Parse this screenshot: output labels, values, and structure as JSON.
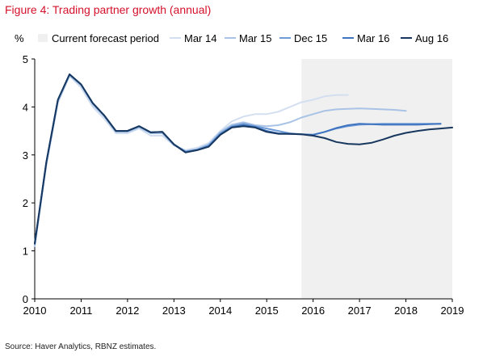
{
  "figure": {
    "title": "Figure 4: Trading partner growth (annual)",
    "source": "Source: Haver Analytics, RBNZ estimates."
  },
  "chart_data": {
    "type": "line",
    "ylabel": "%",
    "xlim": [
      2010,
      2019
    ],
    "ylim": [
      0,
      5
    ],
    "x_ticks": [
      "2010",
      "2011",
      "2012",
      "2013",
      "2014",
      "2015",
      "2016",
      "2017",
      "2018",
      "2019"
    ],
    "y_ticks": [
      "0",
      "1",
      "2",
      "3",
      "4",
      "5"
    ],
    "grid": false,
    "legend_position": "top",
    "shaded_region": {
      "label": "Current forecast period",
      "x_start": 2015.75,
      "x_end": 2019,
      "color": "#f0f0f0"
    },
    "series": [
      {
        "name": "Mar 14",
        "color": "#d3dff0",
        "points": [
          [
            2010,
            1.1
          ],
          [
            2010.25,
            2.8
          ],
          [
            2010.5,
            4.1
          ],
          [
            2010.75,
            4.65
          ],
          [
            2011,
            4.4
          ],
          [
            2011.25,
            4.0
          ],
          [
            2011.5,
            3.75
          ],
          [
            2011.75,
            3.45
          ],
          [
            2012,
            3.45
          ],
          [
            2012.25,
            3.55
          ],
          [
            2012.5,
            3.4
          ],
          [
            2012.75,
            3.4
          ],
          [
            2013,
            3.2
          ],
          [
            2013.25,
            3.1
          ],
          [
            2013.5,
            3.15
          ],
          [
            2013.75,
            3.25
          ],
          [
            2014,
            3.5
          ],
          [
            2014.25,
            3.7
          ],
          [
            2014.5,
            3.8
          ],
          [
            2014.75,
            3.85
          ],
          [
            2015,
            3.85
          ],
          [
            2015.25,
            3.9
          ],
          [
            2015.5,
            4.0
          ],
          [
            2015.75,
            4.1
          ],
          [
            2016,
            4.15
          ],
          [
            2016.25,
            4.22
          ],
          [
            2016.5,
            4.25
          ],
          [
            2016.75,
            4.25
          ]
        ]
      },
      {
        "name": "Mar 15",
        "color": "#a9c3e6",
        "points": [
          [
            2010,
            1.1
          ],
          [
            2010.25,
            2.8
          ],
          [
            2010.5,
            4.1
          ],
          [
            2010.75,
            4.65
          ],
          [
            2011,
            4.45
          ],
          [
            2011.25,
            4.05
          ],
          [
            2011.5,
            3.8
          ],
          [
            2011.75,
            3.48
          ],
          [
            2012,
            3.48
          ],
          [
            2012.25,
            3.57
          ],
          [
            2012.5,
            3.45
          ],
          [
            2012.75,
            3.45
          ],
          [
            2013,
            3.2
          ],
          [
            2013.25,
            3.08
          ],
          [
            2013.5,
            3.12
          ],
          [
            2013.75,
            3.22
          ],
          [
            2014,
            3.48
          ],
          [
            2014.25,
            3.63
          ],
          [
            2014.5,
            3.68
          ],
          [
            2014.75,
            3.62
          ],
          [
            2015,
            3.6
          ],
          [
            2015.25,
            3.62
          ],
          [
            2015.5,
            3.68
          ],
          [
            2015.75,
            3.78
          ],
          [
            2016,
            3.85
          ],
          [
            2016.25,
            3.92
          ],
          [
            2016.5,
            3.95
          ],
          [
            2016.75,
            3.96
          ],
          [
            2017,
            3.97
          ],
          [
            2017.25,
            3.96
          ],
          [
            2017.5,
            3.95
          ],
          [
            2017.75,
            3.94
          ],
          [
            2018,
            3.92
          ]
        ]
      },
      {
        "name": "Dec 15",
        "color": "#6e9bd6",
        "points": [
          [
            2010,
            1.15
          ],
          [
            2010.25,
            2.85
          ],
          [
            2010.5,
            4.15
          ],
          [
            2010.75,
            4.68
          ],
          [
            2011,
            4.47
          ],
          [
            2011.25,
            4.08
          ],
          [
            2011.5,
            3.82
          ],
          [
            2011.75,
            3.5
          ],
          [
            2012,
            3.5
          ],
          [
            2012.25,
            3.6
          ],
          [
            2012.5,
            3.47
          ],
          [
            2012.75,
            3.48
          ],
          [
            2013,
            3.22
          ],
          [
            2013.25,
            3.07
          ],
          [
            2013.5,
            3.11
          ],
          [
            2013.75,
            3.2
          ],
          [
            2014,
            3.45
          ],
          [
            2014.25,
            3.6
          ],
          [
            2014.5,
            3.65
          ],
          [
            2014.75,
            3.6
          ],
          [
            2015,
            3.55
          ],
          [
            2015.25,
            3.5
          ],
          [
            2015.5,
            3.45
          ],
          [
            2015.75,
            3.43
          ],
          [
            2016,
            3.42
          ],
          [
            2016.25,
            3.48
          ],
          [
            2016.5,
            3.55
          ],
          [
            2016.75,
            3.6
          ],
          [
            2017,
            3.63
          ],
          [
            2017.25,
            3.64
          ],
          [
            2017.5,
            3.65
          ],
          [
            2017.75,
            3.65
          ],
          [
            2018,
            3.65
          ],
          [
            2018.25,
            3.65
          ],
          [
            2018.5,
            3.65
          ],
          [
            2018.75,
            3.65
          ]
        ]
      },
      {
        "name": "Mar 16",
        "color": "#3f74c0",
        "points": [
          [
            2010,
            1.15
          ],
          [
            2010.25,
            2.85
          ],
          [
            2010.5,
            4.15
          ],
          [
            2010.75,
            4.68
          ],
          [
            2011,
            4.47
          ],
          [
            2011.25,
            4.08
          ],
          [
            2011.5,
            3.82
          ],
          [
            2011.75,
            3.5
          ],
          [
            2012,
            3.5
          ],
          [
            2012.25,
            3.6
          ],
          [
            2012.5,
            3.47
          ],
          [
            2012.75,
            3.48
          ],
          [
            2013,
            3.22
          ],
          [
            2013.25,
            3.06
          ],
          [
            2013.5,
            3.1
          ],
          [
            2013.75,
            3.18
          ],
          [
            2014,
            3.43
          ],
          [
            2014.25,
            3.58
          ],
          [
            2014.5,
            3.62
          ],
          [
            2014.75,
            3.58
          ],
          [
            2015,
            3.5
          ],
          [
            2015.25,
            3.45
          ],
          [
            2015.5,
            3.44
          ],
          [
            2015.75,
            3.43
          ],
          [
            2016,
            3.42
          ],
          [
            2016.25,
            3.48
          ],
          [
            2016.5,
            3.56
          ],
          [
            2016.75,
            3.62
          ],
          [
            2017,
            3.65
          ],
          [
            2017.25,
            3.64
          ],
          [
            2017.5,
            3.63
          ],
          [
            2017.75,
            3.63
          ],
          [
            2018,
            3.63
          ],
          [
            2018.25,
            3.63
          ],
          [
            2018.5,
            3.64
          ],
          [
            2018.75,
            3.65
          ]
        ]
      },
      {
        "name": "Aug 16",
        "color": "#17375e",
        "points": [
          [
            2010,
            1.15
          ],
          [
            2010.25,
            2.85
          ],
          [
            2010.5,
            4.15
          ],
          [
            2010.75,
            4.68
          ],
          [
            2011,
            4.47
          ],
          [
            2011.25,
            4.08
          ],
          [
            2011.5,
            3.82
          ],
          [
            2011.75,
            3.5
          ],
          [
            2012,
            3.5
          ],
          [
            2012.25,
            3.6
          ],
          [
            2012.5,
            3.47
          ],
          [
            2012.75,
            3.48
          ],
          [
            2013,
            3.22
          ],
          [
            2013.25,
            3.05
          ],
          [
            2013.5,
            3.1
          ],
          [
            2013.75,
            3.17
          ],
          [
            2014,
            3.42
          ],
          [
            2014.25,
            3.57
          ],
          [
            2014.5,
            3.6
          ],
          [
            2014.75,
            3.57
          ],
          [
            2015,
            3.48
          ],
          [
            2015.25,
            3.44
          ],
          [
            2015.5,
            3.44
          ],
          [
            2015.75,
            3.43
          ],
          [
            2016,
            3.4
          ],
          [
            2016.25,
            3.35
          ],
          [
            2016.5,
            3.27
          ],
          [
            2016.75,
            3.23
          ],
          [
            2017,
            3.22
          ],
          [
            2017.25,
            3.25
          ],
          [
            2017.5,
            3.32
          ],
          [
            2017.75,
            3.4
          ],
          [
            2018,
            3.46
          ],
          [
            2018.25,
            3.5
          ],
          [
            2018.5,
            3.53
          ],
          [
            2018.75,
            3.55
          ],
          [
            2019,
            3.57
          ]
        ]
      }
    ]
  }
}
